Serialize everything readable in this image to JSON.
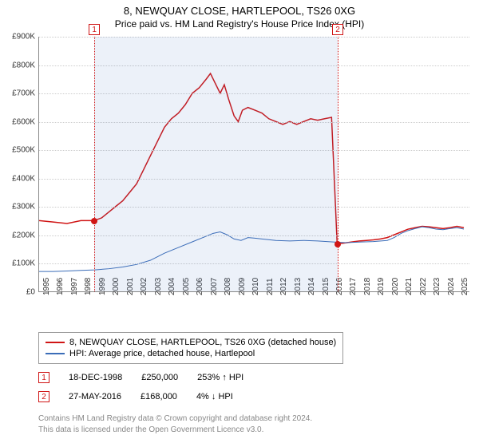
{
  "title": "8, NEWQUAY CLOSE, HARTLEPOOL, TS26 0XG",
  "subtitle": "Price paid vs. HM Land Registry's House Price Index (HPI)",
  "chart": {
    "type": "line",
    "background_color": "#ffffff",
    "grid_color": "#cccccc",
    "yaxis": {
      "min": 0,
      "max": 900000,
      "tick_step": 100000,
      "prefix": "£",
      "suffix": "K",
      "divisor": 1000,
      "label_fontsize": 10
    },
    "xaxis": {
      "min": 1995,
      "max": 2025.9,
      "tick_step": 1,
      "label_fontsize": 10,
      "labels": [
        1995,
        1996,
        1997,
        1998,
        1999,
        2000,
        2001,
        2002,
        2003,
        2004,
        2005,
        2006,
        2007,
        2008,
        2009,
        2010,
        2011,
        2012,
        2013,
        2014,
        2015,
        2016,
        2017,
        2018,
        2019,
        2020,
        2021,
        2022,
        2023,
        2024,
        2025
      ]
    },
    "shade": {
      "start": 1998.96,
      "end": 2016.4,
      "color": "rgba(70,120,200,0.10)"
    },
    "markers": [
      {
        "idx": "1",
        "x": 1998.96,
        "color": "#d01515"
      },
      {
        "idx": "2",
        "x": 2016.4,
        "color": "#d01515"
      }
    ],
    "series": [
      {
        "name": "property",
        "label": "8, NEWQUAY CLOSE, HARTLEPOOL, TS26 0XG (detached house)",
        "color": "#d01515",
        "line_width": 1.5,
        "points": [
          [
            1995,
            250000
          ],
          [
            1996,
            245000
          ],
          [
            1997,
            240000
          ],
          [
            1998,
            250000
          ],
          [
            1998.96,
            250000
          ],
          [
            1999.5,
            260000
          ],
          [
            2000,
            280000
          ],
          [
            2000.5,
            300000
          ],
          [
            2001,
            320000
          ],
          [
            2001.5,
            350000
          ],
          [
            2002,
            380000
          ],
          [
            2002.5,
            430000
          ],
          [
            2003,
            480000
          ],
          [
            2003.5,
            530000
          ],
          [
            2004,
            580000
          ],
          [
            2004.5,
            610000
          ],
          [
            2005,
            630000
          ],
          [
            2005.5,
            660000
          ],
          [
            2006,
            700000
          ],
          [
            2006.5,
            720000
          ],
          [
            2007,
            750000
          ],
          [
            2007.3,
            770000
          ],
          [
            2007.6,
            740000
          ],
          [
            2008,
            700000
          ],
          [
            2008.3,
            730000
          ],
          [
            2008.6,
            680000
          ],
          [
            2009,
            620000
          ],
          [
            2009.3,
            600000
          ],
          [
            2009.6,
            640000
          ],
          [
            2010,
            650000
          ],
          [
            2010.5,
            640000
          ],
          [
            2011,
            630000
          ],
          [
            2011.5,
            610000
          ],
          [
            2012,
            600000
          ],
          [
            2012.5,
            590000
          ],
          [
            2013,
            600000
          ],
          [
            2013.5,
            590000
          ],
          [
            2014,
            600000
          ],
          [
            2014.5,
            610000
          ],
          [
            2015,
            605000
          ],
          [
            2015.5,
            610000
          ],
          [
            2016,
            615000
          ],
          [
            2016.4,
            168000
          ],
          [
            2016.8,
            170000
          ],
          [
            2017.5,
            175000
          ],
          [
            2018,
            178000
          ],
          [
            2018.5,
            180000
          ],
          [
            2019,
            182000
          ],
          [
            2019.5,
            185000
          ],
          [
            2020,
            190000
          ],
          [
            2020.5,
            200000
          ],
          [
            2021,
            210000
          ],
          [
            2021.5,
            220000
          ],
          [
            2022,
            225000
          ],
          [
            2022.5,
            230000
          ],
          [
            2023,
            228000
          ],
          [
            2023.5,
            225000
          ],
          [
            2024,
            222000
          ],
          [
            2024.5,
            225000
          ],
          [
            2025,
            230000
          ],
          [
            2025.5,
            225000
          ]
        ],
        "dots": [
          {
            "x": 1998.96,
            "y": 250000
          },
          {
            "x": 2016.4,
            "y": 168000
          }
        ]
      },
      {
        "name": "hpi",
        "label": "HPI: Average price, detached house, Hartlepool",
        "color": "#3b6db8",
        "line_width": 1,
        "points": [
          [
            1995,
            70000
          ],
          [
            1996,
            70000
          ],
          [
            1997,
            72000
          ],
          [
            1998,
            74000
          ],
          [
            1999,
            76000
          ],
          [
            2000,
            80000
          ],
          [
            2001,
            86000
          ],
          [
            2002,
            95000
          ],
          [
            2003,
            110000
          ],
          [
            2004,
            135000
          ],
          [
            2005,
            155000
          ],
          [
            2006,
            175000
          ],
          [
            2007,
            195000
          ],
          [
            2007.5,
            205000
          ],
          [
            2008,
            210000
          ],
          [
            2008.5,
            200000
          ],
          [
            2009,
            185000
          ],
          [
            2009.5,
            180000
          ],
          [
            2010,
            190000
          ],
          [
            2010.5,
            188000
          ],
          [
            2011,
            185000
          ],
          [
            2012,
            180000
          ],
          [
            2013,
            178000
          ],
          [
            2014,
            180000
          ],
          [
            2015,
            178000
          ],
          [
            2016,
            175000
          ],
          [
            2017,
            172000
          ],
          [
            2018,
            174000
          ],
          [
            2019,
            176000
          ],
          [
            2020,
            180000
          ],
          [
            2020.5,
            190000
          ],
          [
            2021,
            205000
          ],
          [
            2021.5,
            215000
          ],
          [
            2022,
            222000
          ],
          [
            2022.5,
            228000
          ],
          [
            2023,
            225000
          ],
          [
            2023.5,
            220000
          ],
          [
            2024,
            218000
          ],
          [
            2024.5,
            222000
          ],
          [
            2025,
            225000
          ],
          [
            2025.5,
            220000
          ]
        ]
      }
    ]
  },
  "legend": {
    "border_color": "#999999",
    "fontsize": 11
  },
  "transactions": [
    {
      "idx": "1",
      "date": "18-DEC-1998",
      "price": "£250,000",
      "delta": "253% ↑ HPI",
      "color": "#d01515"
    },
    {
      "idx": "2",
      "date": "27-MAY-2016",
      "price": "£168,000",
      "delta": "4% ↓ HPI",
      "color": "#d01515"
    }
  ],
  "footnote_l1": "Contains HM Land Registry data © Crown copyright and database right 2024.",
  "footnote_l2": "This data is licensed under the Open Government Licence v3.0."
}
